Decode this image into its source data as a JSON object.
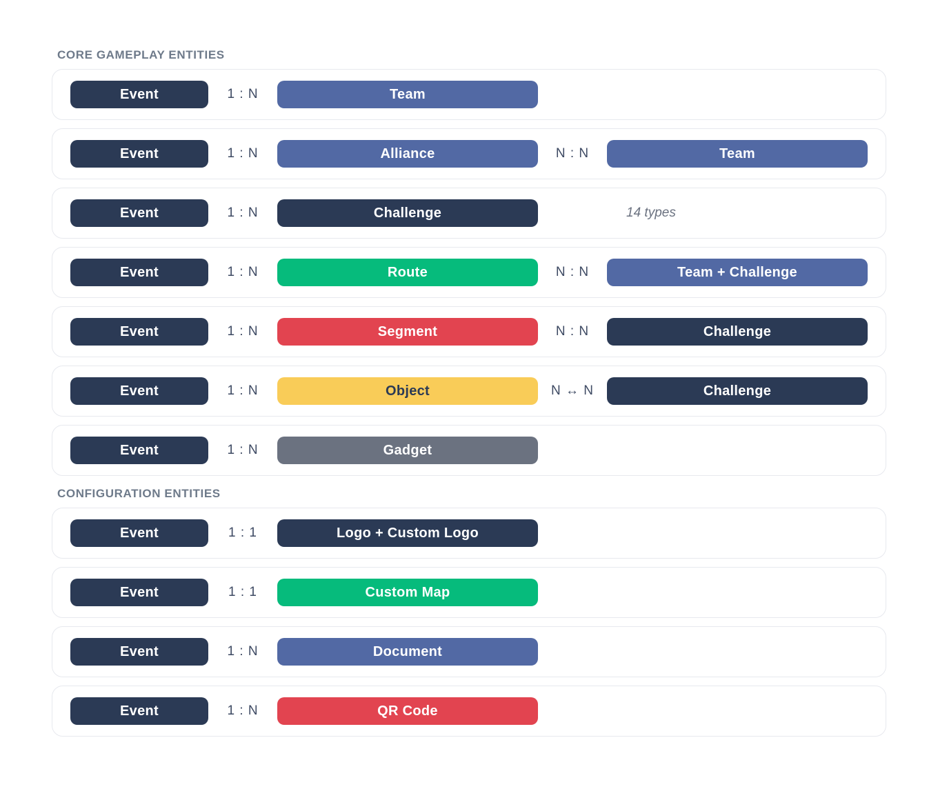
{
  "palette": {
    "navy": {
      "bg": "#2B3A55",
      "fg": "#FFFFFF"
    },
    "blue": {
      "bg": "#5269A4",
      "fg": "#FFFFFF"
    },
    "green": {
      "bg": "#06BB7C",
      "fg": "#FFFFFF"
    },
    "red": {
      "bg": "#E24450",
      "fg": "#FFFFFF"
    },
    "yellow": {
      "bg": "#F9CC58",
      "fg": "#2B3A55"
    },
    "gray": {
      "bg": "#6B7280",
      "fg": "#FFFFFF"
    }
  },
  "text_colors": {
    "section_title": "#6E7A8A",
    "relation_label": "#3E4A63",
    "note": "#6B7280",
    "card_border": "#E7E9EE"
  },
  "sections": [
    {
      "title": "CORE GAMEPLAY ENTITIES",
      "rows": [
        {
          "source": {
            "label": "Event",
            "color": "navy"
          },
          "rel1": "1 : N",
          "mid": {
            "label": "Team",
            "color": "blue"
          }
        },
        {
          "source": {
            "label": "Event",
            "color": "navy"
          },
          "rel1": "1 : N",
          "mid": {
            "label": "Alliance",
            "color": "blue"
          },
          "rel2": "N : N",
          "right": {
            "label": "Team",
            "color": "blue"
          }
        },
        {
          "source": {
            "label": "Event",
            "color": "navy"
          },
          "rel1": "1 : N",
          "mid": {
            "label": "Challenge",
            "color": "navy"
          },
          "note": "14 types"
        },
        {
          "source": {
            "label": "Event",
            "color": "navy"
          },
          "rel1": "1 : N",
          "mid": {
            "label": "Route",
            "color": "green"
          },
          "rel2": "N : N",
          "right": {
            "label": "Team + Challenge",
            "color": "blue"
          }
        },
        {
          "source": {
            "label": "Event",
            "color": "navy"
          },
          "rel1": "1 : N",
          "mid": {
            "label": "Segment",
            "color": "red"
          },
          "rel2": "N : N",
          "right": {
            "label": "Challenge",
            "color": "navy"
          }
        },
        {
          "source": {
            "label": "Event",
            "color": "navy"
          },
          "rel1": "1 : N",
          "mid": {
            "label": "Object",
            "color": "yellow"
          },
          "rel2": "N ↔ N",
          "right": {
            "label": "Challenge",
            "color": "navy"
          }
        },
        {
          "source": {
            "label": "Event",
            "color": "navy"
          },
          "rel1": "1 : N",
          "mid": {
            "label": "Gadget",
            "color": "gray"
          }
        }
      ]
    },
    {
      "title": "CONFIGURATION ENTITIES",
      "rows": [
        {
          "source": {
            "label": "Event",
            "color": "navy"
          },
          "rel1": "1 : 1",
          "mid": {
            "label": "Logo + Custom Logo",
            "color": "navy"
          }
        },
        {
          "source": {
            "label": "Event",
            "color": "navy"
          },
          "rel1": "1 : 1",
          "mid": {
            "label": "Custom Map",
            "color": "green"
          }
        },
        {
          "source": {
            "label": "Event",
            "color": "navy"
          },
          "rel1": "1 : N",
          "mid": {
            "label": "Document",
            "color": "blue"
          }
        },
        {
          "source": {
            "label": "Event",
            "color": "navy"
          },
          "rel1": "1 : N",
          "mid": {
            "label": "QR Code",
            "color": "red"
          }
        }
      ]
    }
  ]
}
